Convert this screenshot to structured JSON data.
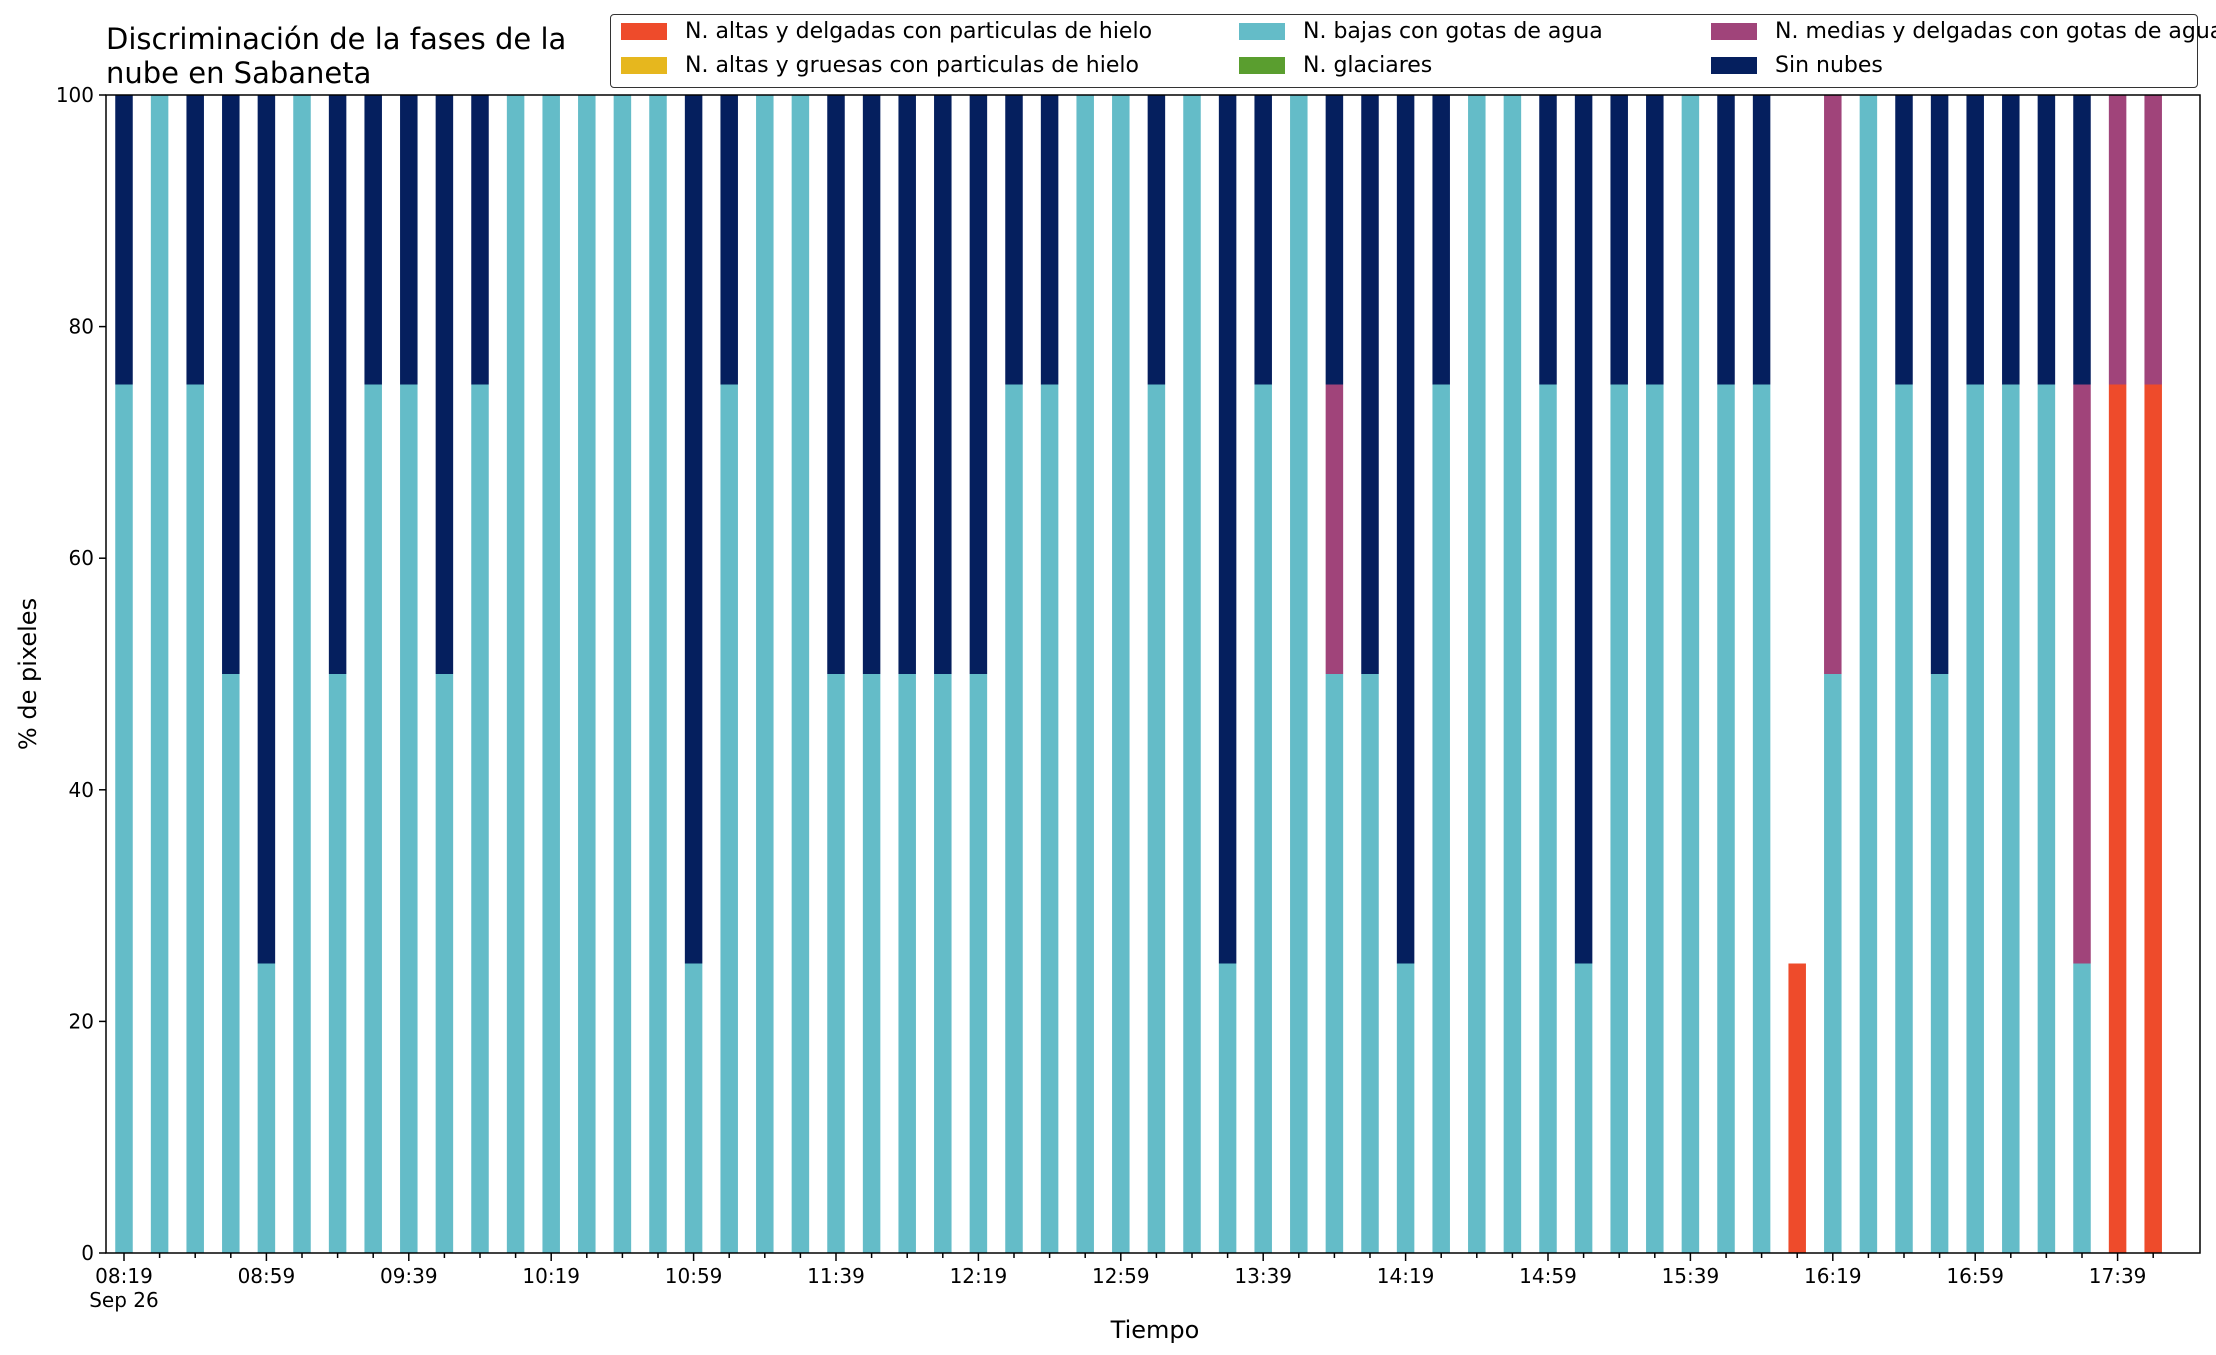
{
  "chart_data": {
    "type": "bar",
    "stacked": true,
    "title": "Discriminación de la fases de la\nnube en Sabaneta",
    "xlabel": "Tiempo",
    "ylabel": "% de pixeles",
    "ylim": [
      0,
      100
    ],
    "yticks": [
      0,
      20,
      40,
      60,
      80,
      100
    ],
    "xtick_labels": [
      "08:19",
      "08:59",
      "09:39",
      "10:19",
      "10:59",
      "11:39",
      "12:19",
      "12:59",
      "13:39",
      "14:19",
      "14:59",
      "15:39",
      "16:19",
      "16:59",
      "17:39"
    ],
    "xtick_sublabel": "Sep 26",
    "legend_placement": "top-right",
    "legend_columns": 3,
    "categories": [
      "08:19",
      "08:29",
      "08:39",
      "08:49",
      "08:59",
      "09:09",
      "09:19",
      "09:29",
      "09:39",
      "09:49",
      "09:59",
      "10:09",
      "10:19",
      "10:29",
      "10:39",
      "10:49",
      "10:59",
      "11:09",
      "11:19",
      "11:29",
      "11:39",
      "11:49",
      "11:59",
      "12:09",
      "12:19",
      "12:29",
      "12:39",
      "12:49",
      "12:59",
      "13:09",
      "13:19",
      "13:29",
      "13:39",
      "13:49",
      "13:59",
      "14:09",
      "14:19",
      "14:29",
      "14:39",
      "14:49",
      "14:59",
      "15:09",
      "15:19",
      "15:29",
      "15:39",
      "15:49",
      "15:59",
      "16:09",
      "16:19",
      "16:29",
      "16:39",
      "16:49",
      "16:59",
      "17:09",
      "17:19",
      "17:29",
      "17:39",
      "17:49"
    ],
    "series": [
      {
        "name": "N. altas y delgadas con particulas de hielo",
        "color": "#ee4b2b",
        "values": [
          0,
          0,
          0,
          0,
          0,
          0,
          0,
          0,
          0,
          0,
          0,
          0,
          0,
          0,
          0,
          0,
          0,
          0,
          0,
          0,
          0,
          0,
          0,
          0,
          0,
          0,
          0,
          0,
          0,
          0,
          0,
          0,
          0,
          0,
          0,
          0,
          0,
          0,
          0,
          0,
          0,
          0,
          0,
          0,
          0,
          0,
          0,
          25,
          0,
          0,
          0,
          0,
          0,
          0,
          0,
          0,
          75,
          75
        ]
      },
      {
        "name": "N. altas y gruesas con particulas de hielo",
        "color": "#e6b71e",
        "values": [
          0,
          0,
          0,
          0,
          0,
          0,
          0,
          0,
          0,
          0,
          0,
          0,
          0,
          0,
          0,
          0,
          0,
          0,
          0,
          0,
          0,
          0,
          0,
          0,
          0,
          0,
          0,
          0,
          0,
          0,
          0,
          0,
          0,
          0,
          0,
          0,
          0,
          0,
          0,
          0,
          0,
          0,
          0,
          0,
          0,
          0,
          0,
          0,
          0,
          0,
          0,
          0,
          0,
          0,
          0,
          0,
          0,
          0
        ]
      },
      {
        "name": "N. bajas con gotas de agua",
        "color": "#64bcc8",
        "values": [
          75,
          100,
          75,
          50,
          25,
          100,
          50,
          75,
          75,
          50,
          75,
          100,
          100,
          100,
          100,
          100,
          25,
          75,
          100,
          100,
          50,
          50,
          50,
          50,
          50,
          75,
          75,
          100,
          100,
          75,
          100,
          25,
          75,
          100,
          50,
          50,
          25,
          75,
          100,
          100,
          75,
          25,
          75,
          75,
          100,
          75,
          75,
          0,
          50,
          100,
          75,
          50,
          75,
          75,
          75,
          25,
          0,
          0
        ]
      },
      {
        "name": "N. glaciares",
        "color": "#5a9e2f",
        "values": [
          0,
          0,
          0,
          0,
          0,
          0,
          0,
          0,
          0,
          0,
          0,
          0,
          0,
          0,
          0,
          0,
          0,
          0,
          0,
          0,
          0,
          0,
          0,
          0,
          0,
          0,
          0,
          0,
          0,
          0,
          0,
          0,
          0,
          0,
          0,
          0,
          0,
          0,
          0,
          0,
          0,
          0,
          0,
          0,
          0,
          0,
          0,
          0,
          0,
          0,
          0,
          0,
          0,
          0,
          0,
          0,
          0,
          0
        ]
      },
      {
        "name": "N. medias y delgadas con gotas de agua",
        "color": "#a0447a",
        "values": [
          0,
          0,
          0,
          0,
          0,
          0,
          0,
          0,
          0,
          0,
          0,
          0,
          0,
          0,
          0,
          0,
          0,
          0,
          0,
          0,
          0,
          0,
          0,
          0,
          0,
          0,
          0,
          0,
          0,
          0,
          0,
          0,
          0,
          0,
          25,
          0,
          0,
          0,
          0,
          0,
          0,
          0,
          0,
          0,
          0,
          0,
          0,
          0,
          50,
          0,
          0,
          0,
          0,
          0,
          0,
          50,
          25,
          25
        ]
      },
      {
        "name": "Sin nubes",
        "color": "#051f5e",
        "values": [
          25,
          0,
          25,
          50,
          75,
          0,
          50,
          25,
          25,
          50,
          25,
          0,
          0,
          0,
          0,
          0,
          75,
          25,
          0,
          0,
          50,
          50,
          50,
          50,
          50,
          25,
          25,
          0,
          0,
          25,
          0,
          75,
          25,
          0,
          25,
          50,
          75,
          25,
          0,
          0,
          25,
          75,
          25,
          25,
          0,
          25,
          25,
          0,
          0,
          0,
          25,
          50,
          25,
          25,
          25,
          25,
          0,
          0
        ]
      }
    ]
  },
  "legend_order": [
    0,
    1,
    2,
    3,
    4,
    5
  ]
}
